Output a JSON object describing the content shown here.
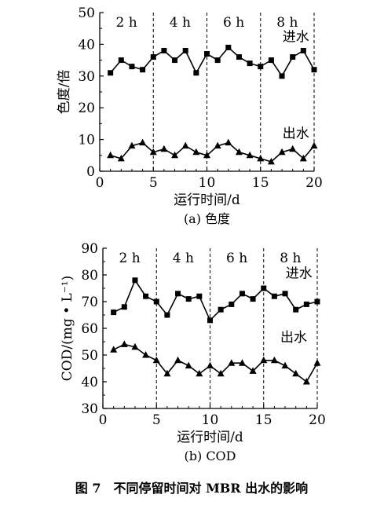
{
  "caption": "图 7　不同停留时间对 MBR 出水的影响",
  "chart_data": [
    {
      "type": "line",
      "subtitle": "(a) 色度",
      "xlabel": "运行时间/d",
      "ylabel": "色度/倍",
      "xlim": [
        0,
        20
      ],
      "ylim": [
        0,
        50
      ],
      "xticks": [
        0,
        5,
        10,
        15,
        20
      ],
      "yticks": [
        0,
        10,
        20,
        30,
        40,
        50
      ],
      "period_dividers": [
        5,
        10,
        15,
        20
      ],
      "period_labels": [
        {
          "label": "2 h",
          "x": 2.5
        },
        {
          "label": "4 h",
          "x": 7.5
        },
        {
          "label": "6 h",
          "x": 12.5
        },
        {
          "label": "8 h",
          "x": 17.5
        }
      ],
      "x": [
        1,
        2,
        3,
        4,
        5,
        6,
        7,
        8,
        9,
        10,
        11,
        12,
        13,
        14,
        15,
        16,
        17,
        18,
        19,
        20
      ],
      "series": [
        {
          "name": "进水",
          "marker": "square",
          "label_pos": {
            "x": 18.3,
            "y": 41
          },
          "values": [
            31,
            35,
            33,
            32,
            36,
            38,
            35,
            38,
            31,
            37,
            35,
            39,
            36,
            34,
            33,
            35,
            30,
            36,
            38,
            32
          ]
        },
        {
          "name": "出水",
          "marker": "triangle",
          "label_pos": {
            "x": 18.3,
            "y": 10.5
          },
          "values": [
            5,
            4,
            8,
            9,
            6,
            7,
            5,
            8,
            6,
            5,
            8,
            9,
            6,
            5,
            4,
            3,
            6,
            7,
            4,
            8
          ]
        }
      ]
    },
    {
      "type": "line",
      "subtitle": "(b) COD",
      "xlabel": "运行时间/d",
      "ylabel": "COD/(mg • L⁻¹)",
      "xlim": [
        0,
        20
      ],
      "ylim": [
        30,
        90
      ],
      "xticks": [
        0,
        5,
        10,
        15,
        20
      ],
      "yticks": [
        30,
        40,
        50,
        60,
        70,
        80,
        90
      ],
      "period_dividers": [
        5,
        10,
        15,
        20
      ],
      "period_labels": [
        {
          "label": "2 h",
          "x": 2.5
        },
        {
          "label": "4 h",
          "x": 7.5
        },
        {
          "label": "6 h",
          "x": 12.5
        },
        {
          "label": "8 h",
          "x": 17.5
        }
      ],
      "x": [
        1,
        2,
        3,
        4,
        5,
        6,
        7,
        8,
        9,
        10,
        11,
        12,
        13,
        14,
        15,
        16,
        17,
        18,
        19,
        20
      ],
      "series": [
        {
          "name": "进水",
          "marker": "square",
          "label_pos": {
            "x": 18.3,
            "y": 79
          },
          "values": [
            66,
            68,
            78,
            72,
            70,
            65,
            73,
            71,
            72,
            63,
            67,
            69,
            73,
            71,
            75,
            72,
            73,
            67,
            69,
            70
          ]
        },
        {
          "name": "出水",
          "marker": "triangle",
          "label_pos": {
            "x": 17.8,
            "y": 55
          },
          "values": [
            52,
            54,
            53,
            50,
            48,
            43,
            48,
            46,
            43,
            46,
            43,
            47,
            47,
            44,
            48,
            48,
            46,
            43,
            40,
            47
          ]
        }
      ]
    }
  ]
}
